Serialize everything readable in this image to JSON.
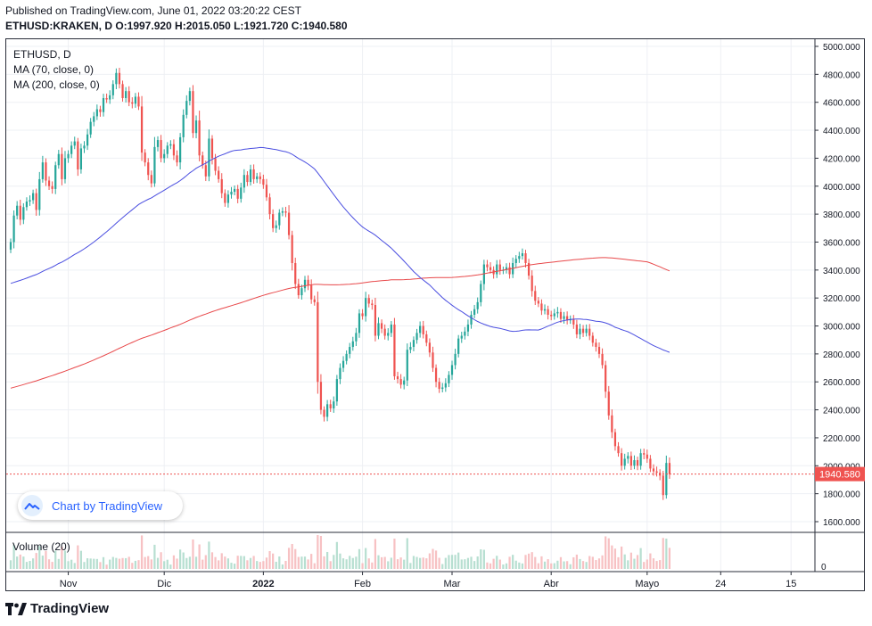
{
  "header": {
    "published": "Published on TradingView.com, June 01, 2022 03:20:22 CEST",
    "ohlc": "ETHUSD:KRAKEN, D O:1997.920 H:2015.050 L:1921.720 C:1940.580"
  },
  "legend": {
    "symbol": "ETHUSD, D",
    "ma70": "MA (70, close, 0)",
    "ma200": "MA (200, close, 0)",
    "volume": "Volume (20)"
  },
  "badge": {
    "text": "Chart by TradingView"
  },
  "footer": {
    "brand": "TradingView"
  },
  "colors": {
    "up": "#26a69a",
    "down": "#ef5350",
    "upVol": "#b7dfd1",
    "downVol": "#f7c1c3",
    "ma70": "#4a4ee0",
    "ma200": "#e8484a",
    "grid": "#eef0f4",
    "axis": "#2a2e39"
  },
  "chart_data": {
    "type": "candlestick",
    "series_name": "ETHUSD",
    "interval": "D",
    "last_price": 1940.58,
    "price_label": "1940.580",
    "ylim": [
      1500,
      5050
    ],
    "y_ticks": [
      1600,
      1800,
      2000,
      2200,
      2400,
      2600,
      2800,
      3000,
      3200,
      3400,
      3600,
      3800,
      4000,
      4200,
      4400,
      4600,
      4800,
      5000
    ],
    "y_tick_labels": [
      "1600.000",
      "1800.000",
      "2000.000",
      "2200.000",
      "2400.000",
      "2600.000",
      "2800.000",
      "3000.000",
      "3200.000",
      "3400.000",
      "3600.000",
      "3800.000",
      "4000.000",
      "4200.000",
      "4400.000",
      "4600.000",
      "4800.000",
      "5000.000"
    ],
    "volume_tick": "0",
    "x_tick_labels": [
      "Nov",
      "Dic",
      "2022",
      "Feb",
      "Mar",
      "Abr",
      "Mayo",
      "24",
      "15"
    ],
    "x_tick_dates": [
      "2021-11-01",
      "2021-12-01",
      "2022-01-01",
      "2022-02-01",
      "2022-03-01",
      "2022-04-01",
      "2022-05-01",
      "2022-05-24",
      "2022-06-15"
    ],
    "start_date": "2021-10-14",
    "end_date": "2022-06-01",
    "closes": [
      3600,
      3790,
      3860,
      3760,
      3850,
      3890,
      3900,
      3950,
      3830,
      4050,
      4170,
      4040,
      4000,
      3980,
      4150,
      4230,
      4050,
      4200,
      4230,
      4290,
      4320,
      4120,
      4270,
      4290,
      4370,
      4460,
      4500,
      4550,
      4530,
      4630,
      4620,
      4650,
      4730,
      4810,
      4730,
      4630,
      4680,
      4600,
      4590,
      4640,
      4570,
      4240,
      4170,
      4080,
      4020,
      4280,
      4330,
      4200,
      4230,
      4290,
      4300,
      4220,
      4170,
      4350,
      4510,
      4610,
      4680,
      4380,
      4470,
      4220,
      4150,
      4070,
      4340,
      4200,
      4110,
      4050,
      3950,
      3880,
      3940,
      3960,
      3980,
      3910,
      3990,
      4080,
      4030,
      4120,
      4050,
      4070,
      4050,
      4010,
      3920,
      3800,
      3700,
      3720,
      3810,
      3820,
      3810,
      3650,
      3450,
      3300,
      3220,
      3270,
      3330,
      3290,
      3190,
      3170,
      2600,
      2400,
      2350,
      2440,
      2410,
      2460,
      2620,
      2700,
      2750,
      2800,
      2850,
      2890,
      2950,
      3090,
      3070,
      3200,
      3160,
      3150,
      2930,
      3020,
      2980,
      2930,
      2950,
      3010,
      2640,
      2620,
      2580,
      2610,
      2830,
      2850,
      2900,
      2950,
      3000,
      2940,
      2880,
      2810,
      2700,
      2600,
      2550,
      2560,
      2590,
      2650,
      2720,
      2800,
      2910,
      2930,
      2960,
      3010,
      3080,
      3120,
      3170,
      3300,
      3440,
      3420,
      3400,
      3370,
      3440,
      3400,
      3400,
      3420,
      3370,
      3450,
      3480,
      3500,
      3520,
      3450,
      3360,
      3250,
      3180,
      3160,
      3110,
      3120,
      3080,
      3070,
      3090,
      3100,
      3050,
      3070,
      3040,
      3050,
      3010,
      2940,
      2980,
      2950,
      2980,
      2930,
      2880,
      2850,
      2800,
      2720,
      2530,
      2360,
      2240,
      2140,
      2090,
      2000,
      2050,
      2070,
      2000,
      2040,
      2000,
      2090,
      2080,
      2050,
      1980,
      1960,
      1950,
      1930,
      1790,
      2020,
      1940
    ]
  }
}
